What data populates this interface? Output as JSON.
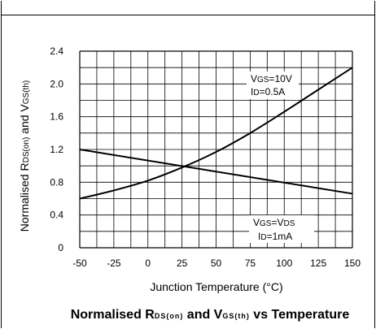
{
  "chart_data": {
    "type": "line",
    "title": {
      "part1": "Normalised R",
      "part2": "DS(on)",
      "part3": " and V",
      "part4": "GS(th)",
      "part5": " vs Temperature"
    },
    "xlabel": "Junction Temperature (°C)",
    "ylabel": {
      "part1": "Normalised R",
      "part2": "DS(on)",
      "part3": " and V",
      "part4": "GS(th)"
    },
    "x_ticks": [
      -50,
      -25,
      0,
      25,
      50,
      75,
      100,
      125,
      150
    ],
    "y_ticks": [
      0,
      0.4,
      0.8,
      1.2,
      1.6,
      2.0,
      2.4
    ],
    "y_tick_labels": [
      "0",
      "0.4",
      "0.8",
      "1.2",
      "1.6",
      "2.0",
      "2.4"
    ],
    "xlim": [
      -50,
      150
    ],
    "ylim": [
      0,
      2.4
    ],
    "grid": true,
    "series": [
      {
        "x": [
          -50,
          -25,
          0,
          25,
          50,
          75,
          100,
          125,
          150
        ],
        "y": [
          0.6,
          0.7,
          0.82,
          0.98,
          1.17,
          1.4,
          1.66,
          1.93,
          2.2
        ]
      },
      {
        "x": [
          -50,
          150
        ],
        "y": [
          1.2,
          0.66
        ]
      }
    ],
    "annotations": [
      {
        "lines": [
          {
            "a": "V",
            "b": "GS",
            "c": "=10V"
          },
          {
            "a": "I",
            "b": "D",
            "c": "=0.5A"
          }
        ]
      },
      {
        "lines": [
          {
            "a": "V",
            "b": "GS",
            "c": "=V",
            "d": "DS"
          },
          {
            "a": "I",
            "b": "D",
            "c": "=1mA"
          }
        ]
      }
    ]
  }
}
